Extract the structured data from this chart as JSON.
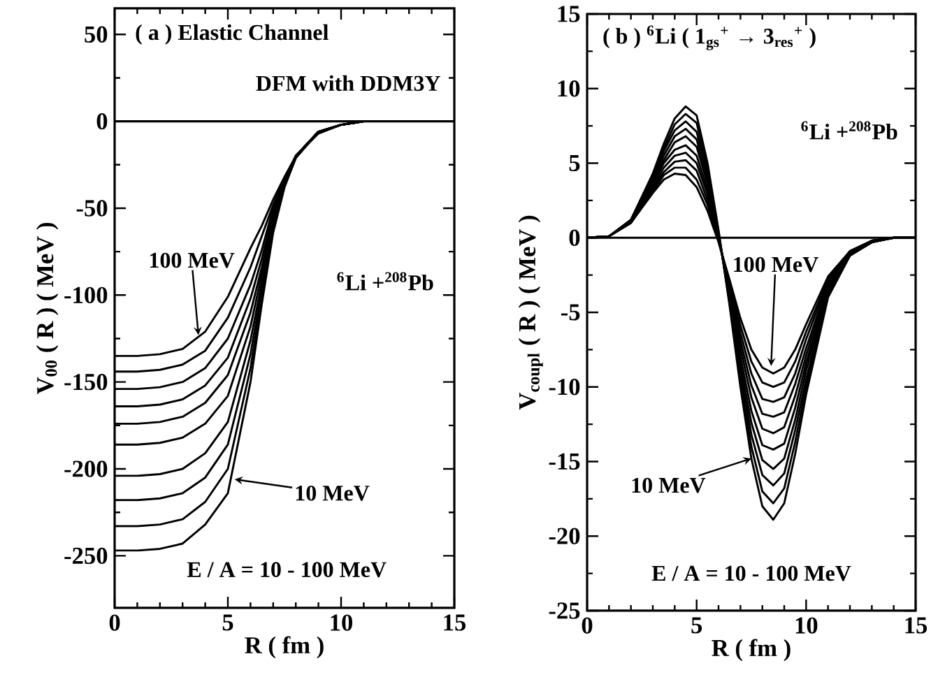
{
  "chart_data": [
    {
      "type": "line",
      "xlabel": "R ( fm )",
      "ylabel": "V$_{00}$ ( R )   ( MeV )",
      "marker": "none",
      "line_style": "solid",
      "x": [
        0,
        1,
        2,
        3,
        4,
        5,
        6,
        6.5,
        7,
        7.5,
        8,
        9,
        10,
        11,
        12,
        15
      ],
      "xlim": [
        0,
        15
      ],
      "ylim": [
        -280,
        65
      ],
      "xticks": [
        0,
        5,
        10,
        15
      ],
      "yticks": [
        -250,
        -200,
        -150,
        -100,
        -50,
        0,
        50
      ],
      "ref_lines": [
        {
          "axis": "y",
          "value": 0,
          "color": "#000000"
        }
      ],
      "annotations": [
        "( a ) Elastic Channel",
        "DFM with DDM3Y",
        {
          "text": "100 MeV",
          "x": 3.7,
          "y": -123
        },
        "$^{6}$Li +$^{208}$Pb",
        {
          "text": "10 MeV",
          "x": 5.3,
          "y": -206
        },
        "E / A = 10 - 100 MeV"
      ],
      "series": [
        {
          "color": "#000000",
          "values": [
            -247,
            -247,
            -246,
            -243,
            -232,
            -214,
            -150,
            -105,
            -64,
            -38,
            -21,
            -6,
            -2,
            0,
            0,
            0
          ]
        },
        {
          "color": "#000000",
          "values": [
            -233,
            -233,
            -232,
            -229,
            -219,
            -200,
            -142,
            -101,
            -62,
            -37,
            -21,
            -6,
            -2,
            0,
            0,
            0
          ]
        },
        {
          "color": "#000000",
          "values": [
            -218,
            -218,
            -217,
            -214,
            -205,
            -186,
            -134,
            -97,
            -61,
            -37,
            -21,
            -6,
            -2,
            0,
            0,
            0
          ]
        },
        {
          "color": "#000000",
          "values": [
            -204,
            -204,
            -203,
            -200,
            -191,
            -173,
            -126,
            -93,
            -59,
            -36,
            -20,
            -6,
            -2,
            0,
            0,
            0
          ]
        },
        {
          "color": "#000000",
          "values": [
            -186,
            -186,
            -185,
            -182,
            -174,
            -158,
            -118,
            -88,
            -57,
            -35,
            -20,
            -6,
            -2,
            0,
            0,
            0
          ]
        },
        {
          "color": "#000000",
          "values": [
            -174,
            -174,
            -173,
            -170,
            -162,
            -146,
            -110,
            -84,
            -55,
            -35,
            -20,
            -6,
            -2,
            0,
            0,
            0
          ]
        },
        {
          "color": "#000000",
          "values": [
            -164,
            -164,
            -163,
            -160,
            -152,
            -136,
            -102,
            -79,
            -53,
            -34,
            -20,
            -6,
            -2,
            0,
            0,
            0
          ]
        },
        {
          "color": "#000000",
          "values": [
            -154,
            -154,
            -153,
            -150,
            -142,
            -125,
            -94,
            -74,
            -50,
            -33,
            -20,
            -6,
            -2,
            0,
            0,
            0
          ]
        },
        {
          "color": "#000000",
          "values": [
            -144,
            -144,
            -143,
            -140,
            -132,
            -113,
            -84,
            -66,
            -48,
            -33,
            -20,
            -6,
            -2,
            0,
            0,
            0
          ]
        },
        {
          "color": "#000000",
          "values": [
            -135,
            -135,
            -134,
            -131,
            -121,
            -101,
            -73,
            -60,
            -45,
            -32,
            -20,
            -7,
            -2,
            0,
            0,
            0
          ]
        }
      ]
    },
    {
      "type": "line",
      "xlabel": "R ( fm )",
      "ylabel": "V$_{coupl}$ ( R )   ( MeV )",
      "marker": "none",
      "line_style": "solid",
      "x": [
        0,
        1,
        2,
        3,
        3.5,
        4,
        4.5,
        5,
        5.5,
        6,
        6.5,
        7,
        7.5,
        8,
        8.5,
        9,
        9.5,
        10,
        11,
        12,
        13,
        14,
        15
      ],
      "xlim": [
        0,
        15
      ],
      "ylim": [
        -25,
        15
      ],
      "xticks": [
        0,
        5,
        10,
        15
      ],
      "yticks": [
        -25,
        -20,
        -15,
        -10,
        -5,
        0,
        5,
        10,
        15
      ],
      "ref_lines": [
        {
          "axis": "y",
          "value": 0,
          "color": "#000000"
        }
      ],
      "annotations": [
        "( b )  $^{6}$Li ( 1$_{gs}$$^{+}$ → 3$_{res}$$^{+}$ )",
        "$^{6}$Li +$^{208}$Pb",
        {
          "text": "100 MeV",
          "x": 8.4,
          "y": -8.6
        },
        {
          "text": "10 MeV",
          "x": 7.5,
          "y": -14.8
        },
        "E / A = 10 - 100 MeV"
      ],
      "series": [
        {
          "color": "#000000",
          "values": [
            0,
            0.1,
            1.2,
            4.3,
            6.3,
            8.0,
            8.8,
            8.2,
            5.0,
            0.5,
            -4.5,
            -10.0,
            -14.8,
            -18.0,
            -18.9,
            -17.8,
            -14.5,
            -10.5,
            -4.0,
            -1.2,
            -0.3,
            0,
            0
          ]
        },
        {
          "color": "#000000",
          "values": [
            0,
            0.1,
            1.2,
            4.2,
            6.0,
            7.6,
            8.3,
            7.7,
            4.6,
            0.4,
            -4.3,
            -9.5,
            -14.0,
            -17.0,
            -17.8,
            -16.8,
            -13.7,
            -10.0,
            -3.8,
            -1.2,
            -0.3,
            0,
            0
          ]
        },
        {
          "color": "#000000",
          "values": [
            0,
            0.1,
            1.2,
            4.0,
            5.8,
            7.2,
            7.8,
            7.1,
            4.3,
            0.3,
            -4.1,
            -9.0,
            -13.2,
            -15.9,
            -16.6,
            -15.8,
            -12.9,
            -9.5,
            -3.7,
            -1.1,
            -0.3,
            0,
            0
          ]
        },
        {
          "color": "#000000",
          "values": [
            0,
            0.1,
            1.1,
            3.9,
            5.5,
            6.8,
            7.3,
            6.6,
            3.9,
            0.2,
            -3.9,
            -8.5,
            -12.4,
            -14.9,
            -15.5,
            -14.8,
            -12.2,
            -8.9,
            -3.5,
            -1.1,
            -0.3,
            0,
            0
          ]
        },
        {
          "color": "#000000",
          "values": [
            0,
            0.1,
            1.1,
            3.7,
            5.2,
            6.4,
            6.8,
            6.1,
            3.6,
            0.1,
            -3.7,
            -8.0,
            -11.6,
            -13.9,
            -14.2,
            -13.8,
            -11.4,
            -8.4,
            -3.4,
            -1.1,
            -0.3,
            0,
            0
          ]
        },
        {
          "color": "#000000",
          "values": [
            0,
            0.1,
            1.1,
            3.6,
            5.0,
            5.9,
            6.2,
            5.5,
            3.2,
            0.1,
            -3.6,
            -7.4,
            -10.7,
            -12.8,
            -13.1,
            -12.7,
            -10.6,
            -7.9,
            -3.2,
            -1.0,
            -0.2,
            0,
            0
          ]
        },
        {
          "color": "#000000",
          "values": [
            0,
            0.1,
            1.1,
            3.4,
            4.7,
            5.5,
            5.7,
            5.0,
            2.9,
            0.0,
            -3.4,
            -6.9,
            -9.9,
            -11.8,
            -12.0,
            -11.7,
            -9.8,
            -7.4,
            -3.1,
            -1.0,
            -0.2,
            0,
            0
          ]
        },
        {
          "color": "#000000",
          "values": [
            0,
            0.1,
            1.0,
            3.3,
            4.4,
            5.1,
            5.2,
            4.5,
            2.5,
            -0.1,
            -3.2,
            -6.4,
            -9.1,
            -10.8,
            -11.0,
            -10.7,
            -9.1,
            -6.8,
            -2.9,
            -1.0,
            -0.2,
            0,
            0
          ]
        },
        {
          "color": "#000000",
          "values": [
            0,
            0.1,
            1.0,
            3.1,
            4.2,
            4.7,
            4.7,
            3.9,
            2.2,
            -0.2,
            -3.0,
            -5.9,
            -8.3,
            -9.7,
            -10.0,
            -9.7,
            -8.3,
            -6.3,
            -2.8,
            -0.9,
            -0.2,
            0,
            0
          ]
        },
        {
          "color": "#000000",
          "values": [
            0,
            0.1,
            1.0,
            3.0,
            3.9,
            4.3,
            4.2,
            3.4,
            1.8,
            -0.3,
            -2.8,
            -5.4,
            -7.5,
            -8.7,
            -9.1,
            -8.7,
            -7.5,
            -5.8,
            -2.6,
            -0.9,
            -0.2,
            0,
            0
          ]
        }
      ]
    }
  ]
}
